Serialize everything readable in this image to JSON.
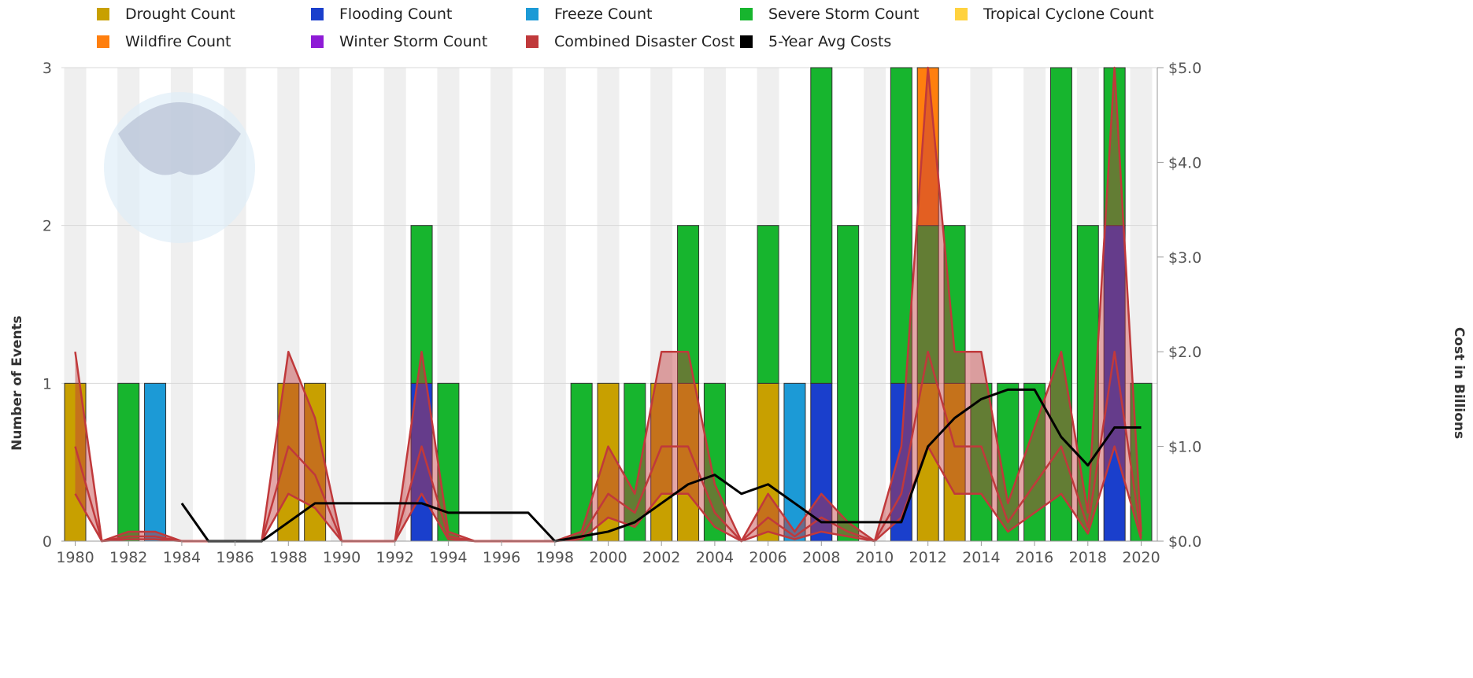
{
  "legend": [
    {
      "label": "Drought Count",
      "color": "#C8A000"
    },
    {
      "label": "Flooding Count",
      "color": "#1A3FCC"
    },
    {
      "label": "Freeze Count",
      "color": "#1C9AD6"
    },
    {
      "label": "Severe Storm Count",
      "color": "#17B52E"
    },
    {
      "label": "Tropical Cyclone Count",
      "color": "#FFD23F"
    },
    {
      "label": "Wildfire Count",
      "color": "#FF7F0E"
    },
    {
      "label": "Winter Storm Count",
      "color": "#8E1BD6"
    },
    {
      "label": "Combined Disaster Cost",
      "color": "#C0393B"
    },
    {
      "label": "5-Year Avg Costs",
      "color": "#000000"
    }
  ],
  "chart_data": {
    "type": "bar",
    "stacked": true,
    "x": [
      1980,
      1981,
      1982,
      1983,
      1984,
      1985,
      1986,
      1987,
      1988,
      1989,
      1990,
      1991,
      1992,
      1993,
      1994,
      1995,
      1996,
      1997,
      1998,
      1999,
      2000,
      2001,
      2002,
      2003,
      2004,
      2005,
      2006,
      2007,
      2008,
      2009,
      2010,
      2011,
      2012,
      2013,
      2014,
      2015,
      2016,
      2017,
      2018,
      2019,
      2020
    ],
    "x_tick_labels": [
      "1980",
      "1982",
      "1984",
      "1986",
      "1988",
      "1990",
      "1992",
      "1994",
      "1996",
      "1998",
      "2000",
      "2002",
      "2004",
      "2006",
      "2008",
      "2010",
      "2012",
      "2014",
      "2016",
      "2018",
      "2020"
    ],
    "series": [
      {
        "name": "Drought Count",
        "color": "#C8A000",
        "values": [
          1,
          0,
          0,
          0,
          0,
          0,
          0,
          0,
          1,
          1,
          0,
          0,
          0,
          0,
          0,
          0,
          0,
          0,
          0,
          0,
          1,
          0,
          1,
          1,
          0,
          0,
          1,
          0,
          0,
          0,
          0,
          0,
          1,
          1,
          0,
          0,
          0,
          0,
          0,
          0,
          0
        ]
      },
      {
        "name": "Flooding Count",
        "color": "#1A3FCC",
        "values": [
          0,
          0,
          0,
          0,
          0,
          0,
          0,
          0,
          0,
          0,
          0,
          0,
          0,
          1,
          0,
          0,
          0,
          0,
          0,
          0,
          0,
          0,
          0,
          0,
          0,
          0,
          0,
          0,
          1,
          0,
          0,
          1,
          0,
          0,
          0,
          0,
          0,
          0,
          0,
          2,
          0
        ]
      },
      {
        "name": "Freeze Count",
        "color": "#1C9AD6",
        "values": [
          0,
          0,
          0,
          1,
          0,
          0,
          0,
          0,
          0,
          0,
          0,
          0,
          0,
          0,
          0,
          0,
          0,
          0,
          0,
          0,
          0,
          0,
          0,
          0,
          0,
          0,
          0,
          1,
          0,
          0,
          0,
          0,
          0,
          0,
          0,
          0,
          0,
          0,
          0,
          0,
          0
        ]
      },
      {
        "name": "Severe Storm Count",
        "color": "#17B52E",
        "values": [
          0,
          0,
          1,
          0,
          0,
          0,
          0,
          0,
          0,
          0,
          0,
          0,
          0,
          1,
          1,
          0,
          0,
          0,
          0,
          1,
          0,
          1,
          0,
          1,
          1,
          0,
          1,
          0,
          2,
          2,
          0,
          2,
          1,
          1,
          1,
          1,
          1,
          3,
          2,
          1,
          1
        ]
      },
      {
        "name": "Tropical Cyclone Count",
        "color": "#FFD23F",
        "values": [
          0,
          0,
          0,
          0,
          0,
          0,
          0,
          0,
          0,
          0,
          0,
          0,
          0,
          0,
          0,
          0,
          0,
          0,
          0,
          0,
          0,
          0,
          0,
          0,
          0,
          0,
          0,
          0,
          0,
          0,
          0,
          0,
          0,
          0,
          0,
          0,
          0,
          0,
          0,
          0,
          0
        ]
      },
      {
        "name": "Wildfire Count",
        "color": "#FF7F0E",
        "values": [
          0,
          0,
          0,
          0,
          0,
          0,
          0,
          0,
          0,
          0,
          0,
          0,
          0,
          0,
          0,
          0,
          0,
          0,
          0,
          0,
          0,
          0,
          0,
          0,
          0,
          0,
          0,
          0,
          0,
          0,
          0,
          0,
          1,
          0,
          0,
          0,
          0,
          0,
          0,
          0,
          0
        ]
      },
      {
        "name": "Winter Storm Count",
        "color": "#8E1BD6",
        "values": [
          0,
          0,
          0,
          0,
          0,
          0,
          0,
          0,
          0,
          0,
          0,
          0,
          0,
          0,
          0,
          0,
          0,
          0,
          0,
          0,
          0,
          0,
          0,
          0,
          0,
          0,
          0,
          0,
          0,
          0,
          0,
          0,
          0,
          0,
          0,
          0,
          0,
          0,
          0,
          0,
          0
        ]
      }
    ],
    "cost_band": {
      "name": "Combined Disaster Cost",
      "color": "#C0393B",
      "fill_opacity": 0.45,
      "upper": [
        2.0,
        0,
        0.1,
        0.1,
        0,
        0,
        0,
        0,
        2.0,
        1.3,
        0,
        0,
        0,
        2.0,
        0.1,
        0,
        0,
        0,
        0,
        0.1,
        1.0,
        0.5,
        2.0,
        2.0,
        0.6,
        0,
        0.5,
        0.1,
        0.5,
        0.2,
        0,
        1.0,
        5.0,
        2.0,
        2.0,
        0.4,
        1.2,
        2.0,
        0.3,
        5.0,
        0.1
      ],
      "mid": [
        1.0,
        0,
        0.05,
        0.05,
        0,
        0,
        0,
        0,
        1.0,
        0.7,
        0,
        0,
        0,
        1.0,
        0.05,
        0,
        0,
        0,
        0,
        0.05,
        0.5,
        0.3,
        1.0,
        1.0,
        0.3,
        0,
        0.25,
        0.05,
        0.25,
        0.1,
        0,
        0.5,
        2.0,
        1.0,
        1.0,
        0.2,
        0.6,
        1.0,
        0.15,
        2.0,
        0.05
      ],
      "lower": [
        0.5,
        0,
        0.02,
        0.02,
        0,
        0,
        0,
        0,
        0.5,
        0.35,
        0,
        0,
        0,
        0.5,
        0.02,
        0,
        0,
        0,
        0,
        0.02,
        0.25,
        0.15,
        0.5,
        0.5,
        0.15,
        0,
        0.1,
        0.02,
        0.1,
        0.05,
        0,
        0.25,
        1.0,
        0.5,
        0.5,
        0.1,
        0.3,
        0.5,
        0.08,
        1.0,
        0.02
      ]
    },
    "avg_line": {
      "name": "5-Year Avg Costs",
      "color": "#000000",
      "x": [
        1984,
        1985,
        1986,
        1987,
        1988,
        1989,
        1990,
        1991,
        1992,
        1993,
        1994,
        1995,
        1996,
        1997,
        1998,
        1999,
        2000,
        2001,
        2002,
        2003,
        2004,
        2005,
        2006,
        2007,
        2008,
        2009,
        2010,
        2011,
        2012,
        2013,
        2014,
        2015,
        2016,
        2017,
        2018,
        2019,
        2020
      ],
      "values": [
        0.4,
        0,
        0,
        0,
        0.2,
        0.4,
        0.4,
        0.4,
        0.4,
        0.4,
        0.3,
        0.3,
        0.3,
        0.3,
        0,
        0.05,
        0.1,
        0.2,
        0.4,
        0.6,
        0.7,
        0.5,
        0.6,
        0.4,
        0.2,
        0.2,
        0.2,
        0.2,
        1.0,
        1.3,
        1.5,
        1.6,
        1.6,
        1.1,
        0.8,
        1.2,
        1.2
      ]
    },
    "y_left": {
      "title": "Number of Events",
      "min": 0,
      "max": 3,
      "ticks": [
        "0",
        "1",
        "2",
        "3"
      ]
    },
    "y_right": {
      "title": "Cost in Billions",
      "min": 0,
      "max": 5,
      "ticks": [
        "$0.0",
        "$1.0",
        "$2.0",
        "$3.0",
        "$4.0",
        "$5.0"
      ]
    },
    "grid": true,
    "legend_position": "top"
  }
}
